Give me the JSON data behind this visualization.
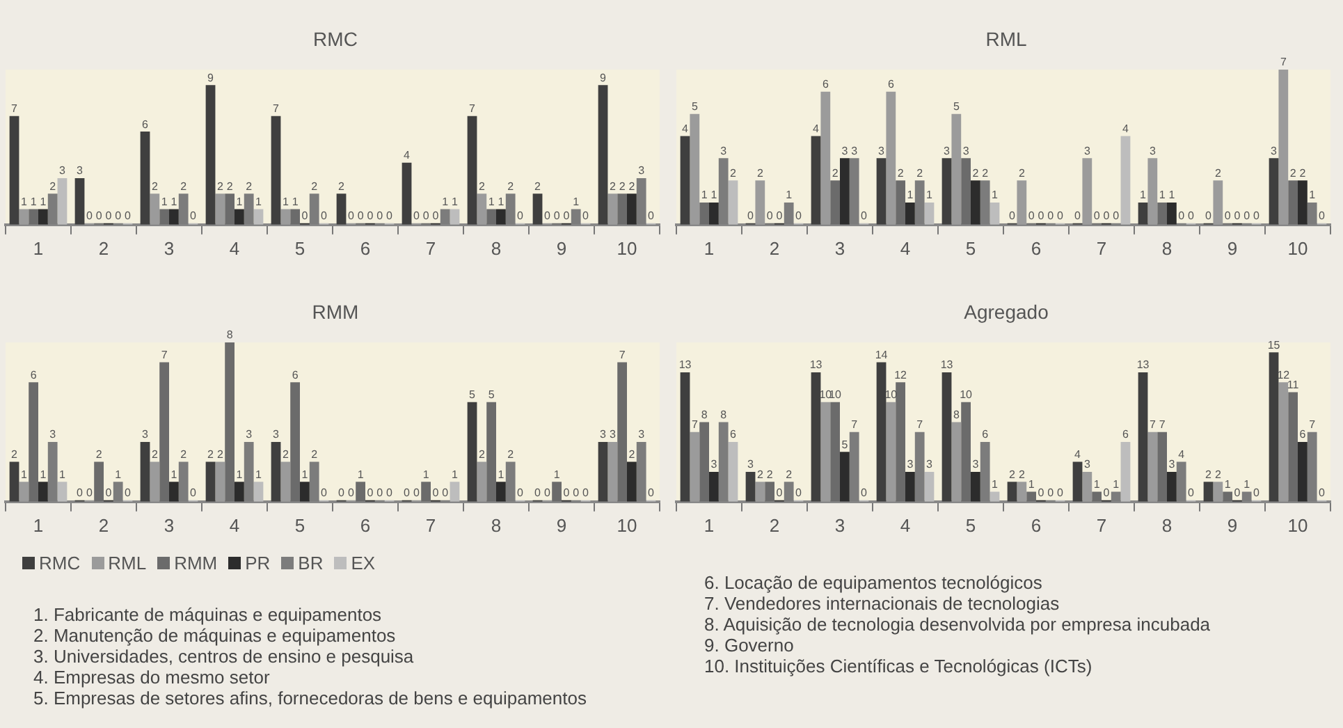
{
  "chart_data": [
    {
      "type": "bar",
      "title": "RMC",
      "categories": [
        "1",
        "2",
        "3",
        "4",
        "5",
        "6",
        "7",
        "8",
        "9",
        "10"
      ],
      "data_labels": true,
      "series": [
        {
          "color": "#3f3f3f",
          "values": [
            7,
            3,
            6,
            9,
            7,
            2,
            4,
            7,
            2,
            9
          ]
        },
        {
          "color": "#9b9b9b",
          "values": [
            1,
            0,
            2,
            2,
            1,
            0,
            0,
            2,
            0,
            2
          ]
        },
        {
          "color": "#6b6b6b",
          "values": [
            1,
            0,
            1,
            2,
            1,
            0,
            0,
            1,
            0,
            2
          ]
        },
        {
          "color": "#2c2c2c",
          "values": [
            1,
            0,
            1,
            1,
            0,
            0,
            0,
            1,
            0,
            2
          ]
        },
        {
          "color": "#7c7c7c",
          "values": [
            2,
            0,
            2,
            2,
            2,
            0,
            1,
            2,
            1,
            3
          ]
        },
        {
          "color": "#bdbdbd",
          "values": [
            3,
            0,
            0,
            1,
            0,
            0,
            1,
            0,
            0,
            0
          ]
        }
      ]
    },
    {
      "type": "bar",
      "title": "RML",
      "categories": [
        "1",
        "2",
        "3",
        "4",
        "5",
        "6",
        "7",
        "8",
        "9",
        "10"
      ],
      "data_labels": true,
      "series": [
        {
          "color": "#3f3f3f",
          "values": [
            4,
            0,
            4,
            3,
            3,
            0,
            0,
            1,
            0,
            3
          ]
        },
        {
          "color": "#9b9b9b",
          "values": [
            5,
            2,
            6,
            6,
            5,
            2,
            3,
            3,
            2,
            7
          ]
        },
        {
          "color": "#6b6b6b",
          "values": [
            1,
            0,
            2,
            2,
            3,
            0,
            0,
            1,
            0,
            2
          ]
        },
        {
          "color": "#2c2c2c",
          "values": [
            1,
            0,
            3,
            1,
            2,
            0,
            0,
            1,
            0,
            2
          ]
        },
        {
          "color": "#7c7c7c",
          "values": [
            3,
            1,
            3,
            2,
            2,
            0,
            0,
            0,
            0,
            1
          ]
        },
        {
          "color": "#bdbdbd",
          "values": [
            2,
            0,
            0,
            1,
            1,
            0,
            4,
            0,
            0,
            0
          ]
        }
      ]
    },
    {
      "type": "bar",
      "title": "RMM",
      "categories": [
        "1",
        "2",
        "3",
        "4",
        "5",
        "6",
        "7",
        "8",
        "9",
        "10"
      ],
      "data_labels": true,
      "legend": "bottom",
      "series": [
        {
          "name": "RMC",
          "color": "#3f3f3f",
          "values": [
            2,
            0,
            3,
            2,
            3,
            0,
            0,
            5,
            0,
            3
          ]
        },
        {
          "name": "RML",
          "color": "#9b9b9b",
          "values": [
            1,
            0,
            2,
            2,
            2,
            0,
            0,
            2,
            0,
            3
          ]
        },
        {
          "name": "RMM",
          "color": "#6b6b6b",
          "values": [
            6,
            2,
            7,
            8,
            6,
            1,
            1,
            5,
            1,
            7
          ]
        },
        {
          "name": "PR",
          "color": "#2c2c2c",
          "values": [
            1,
            0,
            1,
            1,
            1,
            0,
            0,
            1,
            0,
            2
          ]
        },
        {
          "name": "BR",
          "color": "#7c7c7c",
          "values": [
            3,
            1,
            2,
            3,
            2,
            0,
            0,
            2,
            0,
            3
          ]
        },
        {
          "name": "EX",
          "color": "#bdbdbd",
          "values": [
            1,
            0,
            0,
            1,
            0,
            0,
            1,
            0,
            0,
            0
          ]
        }
      ],
      "annotations": [
        "1. Fabricante de máquinas e equipamentos",
        "2. Manutenção de máquinas e equipamentos",
        "3. Universidades, centros de ensino e pesquisa",
        "4. Empresas do mesmo setor",
        "5. Empresas de setores afins, fornecedoras de bens e equipamentos"
      ]
    },
    {
      "type": "bar",
      "title": "Agregado",
      "categories": [
        "1",
        "2",
        "3",
        "4",
        "5",
        "6",
        "7",
        "8",
        "9",
        "10"
      ],
      "data_labels": true,
      "series": [
        {
          "color": "#3f3f3f",
          "values": [
            13,
            3,
            13,
            14,
            13,
            2,
            4,
            13,
            2,
            15
          ]
        },
        {
          "color": "#9b9b9b",
          "values": [
            7,
            2,
            10,
            10,
            8,
            2,
            3,
            7,
            2,
            12
          ]
        },
        {
          "color": "#6b6b6b",
          "values": [
            8,
            2,
            10,
            12,
            10,
            1,
            1,
            7,
            1,
            11
          ]
        },
        {
          "color": "#2c2c2c",
          "values": [
            3,
            0,
            5,
            3,
            3,
            0,
            0,
            3,
            0,
            6
          ]
        },
        {
          "color": "#7c7c7c",
          "values": [
            8,
            2,
            7,
            7,
            6,
            0,
            1,
            4,
            1,
            7
          ]
        },
        {
          "color": "#bdbdbd",
          "values": [
            6,
            0,
            0,
            3,
            1,
            0,
            6,
            0,
            0,
            0
          ]
        }
      ],
      "annotations": [
        "6. Locação de equipamentos tecnológicos",
        "7. Vendedores internacionais de tecnologias",
        "8. Aquisição de tecnologia desenvolvida por empresa incubada",
        "9. Governo",
        "10. Instituições Científicas e Tecnológicas (ICTs)"
      ]
    }
  ]
}
